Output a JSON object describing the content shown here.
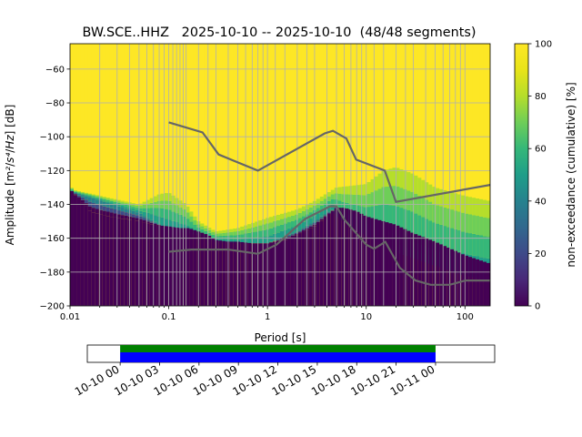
{
  "chart_data": [
    {
      "type": "heatmap",
      "title": "BW.SCE..HHZ   2025-10-10 -- 2025-10-10  (48/48 segments)",
      "xlabel": "Period [s]",
      "ylabel": "Amplitude [m²/s⁴/Hz] [dB]",
      "xscale": "log",
      "xlim": [
        0.01,
        180
      ],
      "ylim": [
        -200,
        -45
      ],
      "x_ticks": [
        {
          "value": 0.01,
          "label": "0.01"
        },
        {
          "value": 0.1,
          "label": "0.1"
        },
        {
          "value": 1,
          "label": "1"
        },
        {
          "value": 10,
          "label": "10"
        },
        {
          "value": 100,
          "label": "100"
        }
      ],
      "y_ticks": [
        {
          "value": -60,
          "label": "−60"
        },
        {
          "value": -80,
          "label": "−80"
        },
        {
          "value": -100,
          "label": "−100"
        },
        {
          "value": -120,
          "label": "−120"
        },
        {
          "value": -140,
          "label": "−140"
        },
        {
          "value": -160,
          "label": "−160"
        },
        {
          "value": -180,
          "label": "−180"
        },
        {
          "value": -200,
          "label": "−200"
        }
      ],
      "grid": true,
      "colorbar": {
        "label": "non-exceedance (cumulative) [%]",
        "range": [
          0,
          100
        ],
        "ticks": [
          {
            "value": 0,
            "label": "0"
          },
          {
            "value": 20,
            "label": "20"
          },
          {
            "value": 40,
            "label": "40"
          },
          {
            "value": 60,
            "label": "60"
          },
          {
            "value": 80,
            "label": "80"
          },
          {
            "value": 100,
            "label": "100"
          }
        ]
      },
      "lower_envelope": {
        "x": [
          0.01,
          0.012,
          0.014,
          0.016,
          0.02,
          0.025,
          0.03,
          0.04,
          0.05,
          0.07,
          0.1,
          0.13,
          0.16,
          0.2,
          0.25,
          0.3,
          0.4,
          0.5,
          0.7,
          1,
          1.5,
          2,
          3,
          4,
          5,
          6,
          8,
          10,
          15,
          20,
          30,
          50,
          100,
          180
        ],
        "y": [
          -131,
          -136,
          -140,
          -144,
          -146,
          -147,
          -148,
          -149,
          -150,
          -152,
          -153,
          -154,
          -154,
          -156,
          -158,
          -161,
          -162,
          -162,
          -163,
          -163,
          -161,
          -158,
          -153,
          -147,
          -142,
          -142,
          -144,
          -147,
          -150,
          -152,
          -157,
          -162,
          -170,
          -175
        ]
      },
      "band_50": {
        "x": [
          0.01,
          0.05,
          0.1,
          0.2,
          0.3,
          0.5,
          1,
          2,
          3,
          4.5,
          6,
          10,
          20,
          50,
          100,
          180
        ],
        "y": [
          -132,
          -145,
          -155,
          -158,
          -162,
          -163,
          -163,
          -156,
          -150,
          -143,
          -150,
          -158,
          -168,
          -176,
          -182,
          -185
        ]
      },
      "band_95": {
        "x": [
          0.01,
          0.05,
          0.08,
          0.1,
          0.15,
          0.2,
          0.3,
          0.5,
          1,
          2,
          3,
          5,
          10,
          15,
          20,
          30,
          50,
          100,
          180
        ],
        "y": [
          -131,
          -140,
          -134,
          -133,
          -140,
          -150,
          -156,
          -154,
          -148,
          -143,
          -138,
          -130,
          -128,
          -120,
          -118,
          -122,
          -130,
          -135,
          -138
        ]
      },
      "nhnm": {
        "x": [
          0.1,
          0.22,
          0.32,
          0.8,
          3.8,
          4.6,
          6.3,
          7.9,
          15.4,
          20,
          180
        ],
        "y": [
          -91.5,
          -97.4,
          -110.5,
          -120,
          -98,
          -96.5,
          -101,
          -113.5,
          -120,
          -138.5,
          -128.5
        ]
      },
      "nlnm": {
        "x": [
          0.1,
          0.17,
          0.4,
          0.8,
          1.24,
          2.4,
          4.3,
          5,
          6,
          10,
          12,
          15.6,
          21.9,
          31.6,
          45,
          70,
          101,
          154,
          180
        ],
        "y": [
          -168,
          -166.7,
          -166.7,
          -169.2,
          -163.7,
          -148.6,
          -141.1,
          -141.1,
          -149,
          -163.8,
          -166.2,
          -162.1,
          -177.5,
          -185,
          -187.5,
          -187.5,
          -185,
          -185,
          -185
        ]
      },
      "period_gridlines": [
        0.02,
        0.03,
        0.04,
        0.05,
        0.06,
        0.07,
        0.08,
        0.09,
        0.1,
        0.11,
        0.12,
        0.13,
        0.14,
        0.15,
        0.2,
        0.25,
        0.3,
        0.4,
        0.5,
        0.6,
        0.7,
        0.8,
        0.9,
        1,
        1.2,
        1.5,
        2,
        2.5,
        3,
        4,
        5,
        6,
        7,
        8,
        9,
        10,
        12,
        15,
        20,
        25,
        30,
        40,
        50,
        60,
        70,
        80,
        90,
        100
      ]
    },
    {
      "type": "timeline",
      "x_ticks": [
        "10-10 00",
        "10-10 03",
        "10-10 06",
        "10-10 09",
        "10-10 12",
        "10-10 15",
        "10-10 18",
        "10-10 21",
        "10-11 00"
      ],
      "xlim_hours": [
        -2.5,
        28.5
      ],
      "coverage_hours": [
        0,
        24
      ],
      "colors": {
        "data": "#0000ff",
        "processed": "#008000"
      }
    }
  ]
}
